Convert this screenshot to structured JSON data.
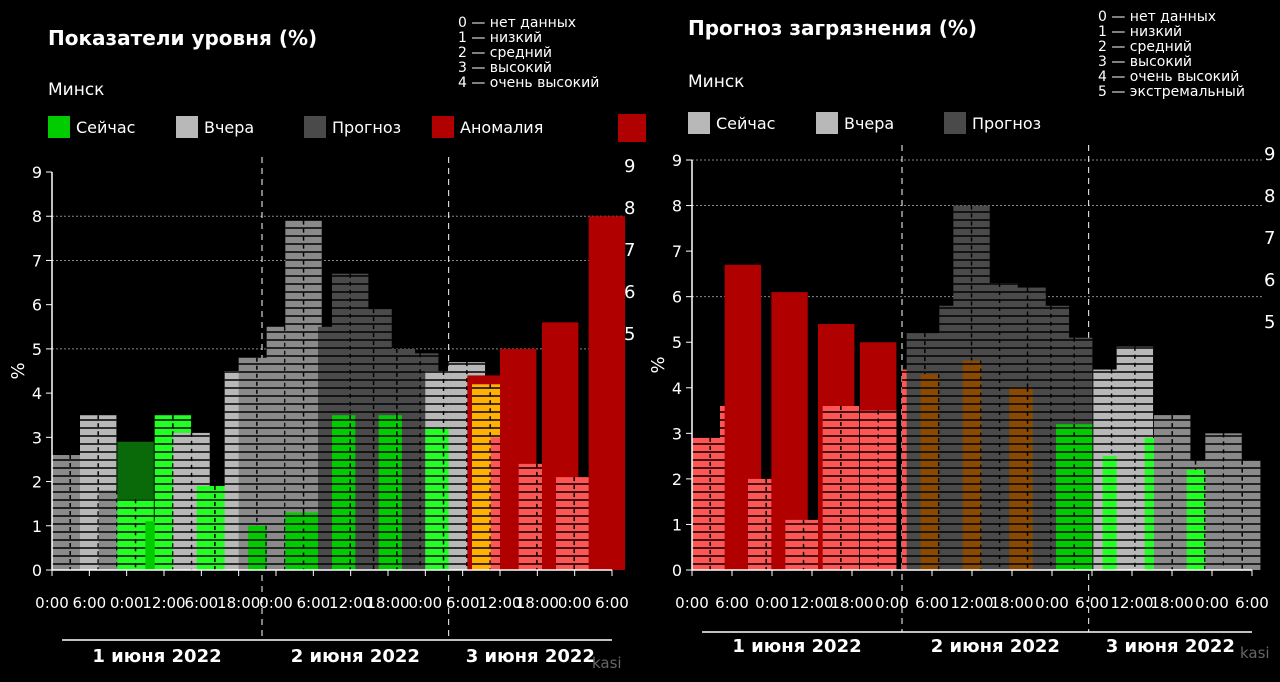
{
  "colors": {
    "grey_light": "#b8b8b8",
    "grey_mid": "#8a8a8a",
    "grey_dark": "#4a4a4a",
    "green_dark": "#0a6a0a",
    "green": "#00cc00",
    "green_bright": "#22ff22",
    "orange": "#ffb000",
    "orange_dark": "#8a4a00",
    "red_dark": "#b00000",
    "red_light": "#ff5555",
    "grid": "#888888"
  },
  "chart_data": [
    {
      "type": "bar",
      "title": "Показатели уровня (%)",
      "subtitle": "Минск",
      "legend": [
        {
          "label": "Сейчас",
          "color": "#00cc00"
        },
        {
          "label": "Вчера",
          "color": "#b8b8b8"
        },
        {
          "label": "Прогноз",
          "color": "#4a4a4a"
        },
        {
          "label": "Аномалия",
          "color": "#b00000"
        }
      ],
      "legend_position": "top-left",
      "notes": [
        "0 — нет данных",
        "1 — низкий",
        "2 — средний",
        "3 — высокий",
        "4 — очень высокий"
      ],
      "ylabel": "%",
      "ylim": [
        0,
        9
      ],
      "yticks": [
        0,
        1,
        2,
        3,
        4,
        5,
        6,
        7,
        8,
        9
      ],
      "right_ticks": [
        "9",
        "8",
        "7",
        "6",
        "5"
      ],
      "hlines": [
        5,
        7,
        8
      ],
      "xticks": [
        "0:00",
        "6:00",
        "0:00",
        "12:00",
        "6:00",
        "18:00",
        "0:00",
        "6:00",
        "12:00",
        "18:00",
        "0:00",
        "6:00",
        "12:00",
        "18:00",
        "0:00",
        "6:00"
      ],
      "day_labels": [
        "1 июня 2022",
        "2 июня 2022",
        "3 июня 2022"
      ],
      "vlines": [
        4.5,
        8.5
      ],
      "source": "kasi",
      "bars": [
        {
          "x": 0.0,
          "v": 2.6,
          "c": "grey_mid",
          "hatch": true
        },
        {
          "x": 0.6,
          "v": 3.5,
          "c": "grey_light",
          "hatch": true
        },
        {
          "x": 1.0,
          "v": 1.8,
          "c": "grey_mid",
          "hatch": true
        },
        {
          "x": 1.4,
          "v": 2.9,
          "c": "green_dark",
          "hatch": false
        },
        {
          "x": 1.4,
          "v": 1.6,
          "c": "green_bright",
          "hatch": true
        },
        {
          "x": 2.0,
          "v": 1.1,
          "c": "green",
          "hatch": false
        },
        {
          "x": 2.2,
          "v": 3.5,
          "c": "green_bright",
          "hatch": true
        },
        {
          "x": 2.6,
          "v": 3.1,
          "c": "grey_light",
          "hatch": true
        },
        {
          "x": 3.1,
          "v": 1.9,
          "c": "green_bright",
          "hatch": true
        },
        {
          "x": 3.7,
          "v": 4.5,
          "c": "grey_light",
          "hatch": true
        },
        {
          "x": 4.0,
          "v": 4.8,
          "c": "grey_mid",
          "hatch": true
        },
        {
          "x": 4.2,
          "v": 1.0,
          "c": "green",
          "hatch": true
        },
        {
          "x": 4.6,
          "v": 5.5,
          "c": "grey_mid",
          "hatch": true
        },
        {
          "x": 5.0,
          "v": 7.9,
          "c": "grey_mid",
          "hatch": true
        },
        {
          "x": 5.0,
          "v": 1.3,
          "c": "green",
          "hatch": true
        },
        {
          "x": 5.7,
          "v": 5.5,
          "c": "grey_dark",
          "hatch": true
        },
        {
          "x": 6.0,
          "v": 6.7,
          "c": "grey_dark",
          "hatch": true
        },
        {
          "x": 6.0,
          "v": 3.5,
          "c": "green",
          "hatch": true
        },
        {
          "x": 6.5,
          "v": 5.9,
          "c": "grey_dark",
          "hatch": true
        },
        {
          "x": 7.0,
          "v": 5.0,
          "c": "grey_dark",
          "hatch": true
        },
        {
          "x": 7.0,
          "v": 3.5,
          "c": "green",
          "hatch": true
        },
        {
          "x": 7.5,
          "v": 4.9,
          "c": "grey_dark",
          "hatch": true
        },
        {
          "x": 8.0,
          "v": 4.5,
          "c": "grey_light",
          "hatch": true
        },
        {
          "x": 8.0,
          "v": 3.2,
          "c": "green_bright",
          "hatch": true
        },
        {
          "x": 8.5,
          "v": 4.7,
          "c": "grey_light",
          "hatch": true
        },
        {
          "x": 8.9,
          "v": 4.4,
          "c": "red_dark",
          "hatch": false
        },
        {
          "x": 9.0,
          "v": 4.2,
          "c": "orange",
          "hatch": true
        },
        {
          "x": 9.4,
          "v": 3.0,
          "c": "red_light",
          "hatch": true
        },
        {
          "x": 9.6,
          "v": 5.0,
          "c": "red_dark",
          "hatch": false
        },
        {
          "x": 10.0,
          "v": 2.4,
          "c": "red_light",
          "hatch": true
        },
        {
          "x": 10.5,
          "v": 5.6,
          "c": "red_dark",
          "hatch": false
        },
        {
          "x": 10.8,
          "v": 2.1,
          "c": "red_light",
          "hatch": true
        },
        {
          "x": 11.5,
          "v": 8.0,
          "c": "red_dark",
          "hatch": false
        }
      ]
    },
    {
      "type": "bar",
      "title": "Прогноз загрязнения (%)",
      "subtitle": "Минск",
      "legend": [
        {
          "label": "Сейчас",
          "color": "#b8b8b8"
        },
        {
          "label": "Вчера",
          "color": "#b8b8b8"
        },
        {
          "label": "Прогноз",
          "color": "#4a4a4a"
        }
      ],
      "legend_position": "top-left",
      "notes": [
        "0 — нет данных",
        "1 — низкий",
        "2 — средний",
        "3 — высокий",
        "4 — очень высокий",
        "5 — экстремальный"
      ],
      "ylabel": "%",
      "ylim": [
        0,
        9
      ],
      "yticks": [
        0,
        1,
        2,
        3,
        4,
        5,
        6,
        7,
        8,
        9
      ],
      "right_ticks": [
        "9",
        "8",
        "7",
        "6",
        "5"
      ],
      "hlines": [
        6,
        8,
        9
      ],
      "xticks": [
        "0:00",
        "6:00",
        "0:00",
        "12:00",
        "18:00",
        "0:00",
        "6:00",
        "12:00",
        "18:00",
        "0:00",
        "6:00",
        "12:00",
        "18:00",
        "0:00",
        "6:00"
      ],
      "day_labels": [
        "1 июня 2022",
        "2 июня 2022",
        "3 июня 2022"
      ],
      "vlines": [
        4.5,
        8.5
      ],
      "source": "kasi",
      "bars": [
        {
          "x": 0.0,
          "v": 2.9,
          "c": "red_light",
          "hatch": true
        },
        {
          "x": 0.6,
          "v": 3.6,
          "c": "red_light",
          "hatch": true
        },
        {
          "x": 0.7,
          "v": 6.7,
          "c": "red_dark",
          "hatch": false
        },
        {
          "x": 1.2,
          "v": 2.0,
          "c": "red_light",
          "hatch": true
        },
        {
          "x": 1.7,
          "v": 6.1,
          "c": "red_dark",
          "hatch": false
        },
        {
          "x": 2.0,
          "v": 1.1,
          "c": "red_light",
          "hatch": true
        },
        {
          "x": 2.7,
          "v": 5.4,
          "c": "red_dark",
          "hatch": false
        },
        {
          "x": 2.8,
          "v": 3.6,
          "c": "red_light",
          "hatch": true
        },
        {
          "x": 3.6,
          "v": 5.0,
          "c": "red_dark",
          "hatch": false
        },
        {
          "x": 3.6,
          "v": 3.5,
          "c": "red_light",
          "hatch": true
        },
        {
          "x": 4.5,
          "v": 4.4,
          "c": "red_light",
          "hatch": true
        },
        {
          "x": 4.6,
          "v": 5.2,
          "c": "grey_dark",
          "hatch": true
        },
        {
          "x": 4.9,
          "v": 4.3,
          "c": "orange_dark",
          "hatch": true
        },
        {
          "x": 5.3,
          "v": 5.8,
          "c": "grey_dark",
          "hatch": true
        },
        {
          "x": 5.6,
          "v": 8.0,
          "c": "grey_dark",
          "hatch": true
        },
        {
          "x": 5.8,
          "v": 4.6,
          "c": "orange_dark",
          "hatch": true
        },
        {
          "x": 6.2,
          "v": 6.3,
          "c": "grey_dark",
          "hatch": true
        },
        {
          "x": 6.8,
          "v": 6.2,
          "c": "grey_dark",
          "hatch": true
        },
        {
          "x": 6.8,
          "v": 4.0,
          "c": "orange_dark",
          "hatch": true
        },
        {
          "x": 7.3,
          "v": 5.8,
          "c": "grey_dark",
          "hatch": true
        },
        {
          "x": 7.8,
          "v": 5.1,
          "c": "grey_dark",
          "hatch": true
        },
        {
          "x": 7.8,
          "v": 3.2,
          "c": "green",
          "hatch": true
        },
        {
          "x": 8.6,
          "v": 4.4,
          "c": "grey_light",
          "hatch": true
        },
        {
          "x": 8.8,
          "v": 2.5,
          "c": "green_bright",
          "hatch": true
        },
        {
          "x": 9.1,
          "v": 4.9,
          "c": "grey_light",
          "hatch": true
        },
        {
          "x": 9.7,
          "v": 2.9,
          "c": "green_bright",
          "hatch": true
        },
        {
          "x": 9.9,
          "v": 3.4,
          "c": "grey_mid",
          "hatch": true
        },
        {
          "x": 10.4,
          "v": 2.4,
          "c": "grey_mid",
          "hatch": true
        },
        {
          "x": 10.6,
          "v": 2.2,
          "c": "green_bright",
          "hatch": true
        },
        {
          "x": 11.0,
          "v": 3.0,
          "c": "grey_mid",
          "hatch": true
        },
        {
          "x": 11.4,
          "v": 2.4,
          "c": "grey_mid",
          "hatch": true
        }
      ]
    }
  ]
}
